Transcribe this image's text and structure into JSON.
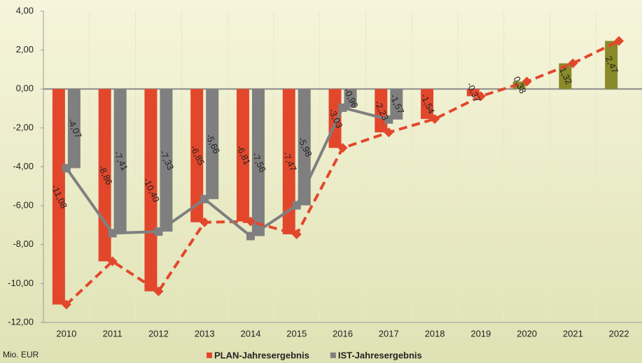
{
  "chart_data": {
    "type": "bar_line",
    "y_label": "Mio. EUR",
    "categories": [
      "2010",
      "2011",
      "2012",
      "2013",
      "2014",
      "2015",
      "2016",
      "2017",
      "2018",
      "2019",
      "2020",
      "2021",
      "2022"
    ],
    "series": [
      {
        "name": "PLAN-Jahresergebnis",
        "color": "#e2472c",
        "positive_color": "#8a8a2a",
        "line_style": "dashed",
        "marker": "diamond",
        "values": [
          -11.08,
          -8.86,
          -10.4,
          -6.85,
          -6.81,
          -7.47,
          -3.03,
          -2.23,
          -1.54,
          -0.37,
          0.38,
          1.32,
          2.47
        ],
        "value_labels": [
          "-11,08",
          "-8,86",
          "-10,40",
          "-6,85",
          "-6,81",
          "-7,47",
          "-3,03",
          "-2,23",
          "-1,54",
          "-0,37",
          "0,38",
          "1,32",
          "2,47"
        ]
      },
      {
        "name": "IST-Jahresergebnis",
        "color": "#7f7f7f",
        "line_style": "solid",
        "marker": "square",
        "values": [
          -4.07,
          -7.41,
          -7.33,
          -5.66,
          -7.56,
          -5.98,
          -0.96,
          -1.57,
          null,
          null,
          null,
          null,
          null
        ],
        "value_labels": [
          "-4,07",
          "-7,41",
          "-7,33",
          "-5,66",
          "-7,56",
          "-5,98",
          "-0,96",
          "-1,57",
          null,
          null,
          null,
          null,
          null
        ]
      }
    ],
    "ylim": [
      -12,
      4
    ],
    "yticks": [
      {
        "value": -12,
        "label": "-12,00"
      },
      {
        "value": -10,
        "label": "-10,00"
      },
      {
        "value": -8,
        "label": "-8,00"
      },
      {
        "value": -6,
        "label": "-6,00"
      },
      {
        "value": -4,
        "label": "-4,00"
      },
      {
        "value": -2,
        "label": "-2,00"
      },
      {
        "value": 0,
        "label": "0,00"
      },
      {
        "value": 2,
        "label": "2,00"
      },
      {
        "value": 4,
        "label": "4,00"
      }
    ],
    "legend": "bottom"
  }
}
